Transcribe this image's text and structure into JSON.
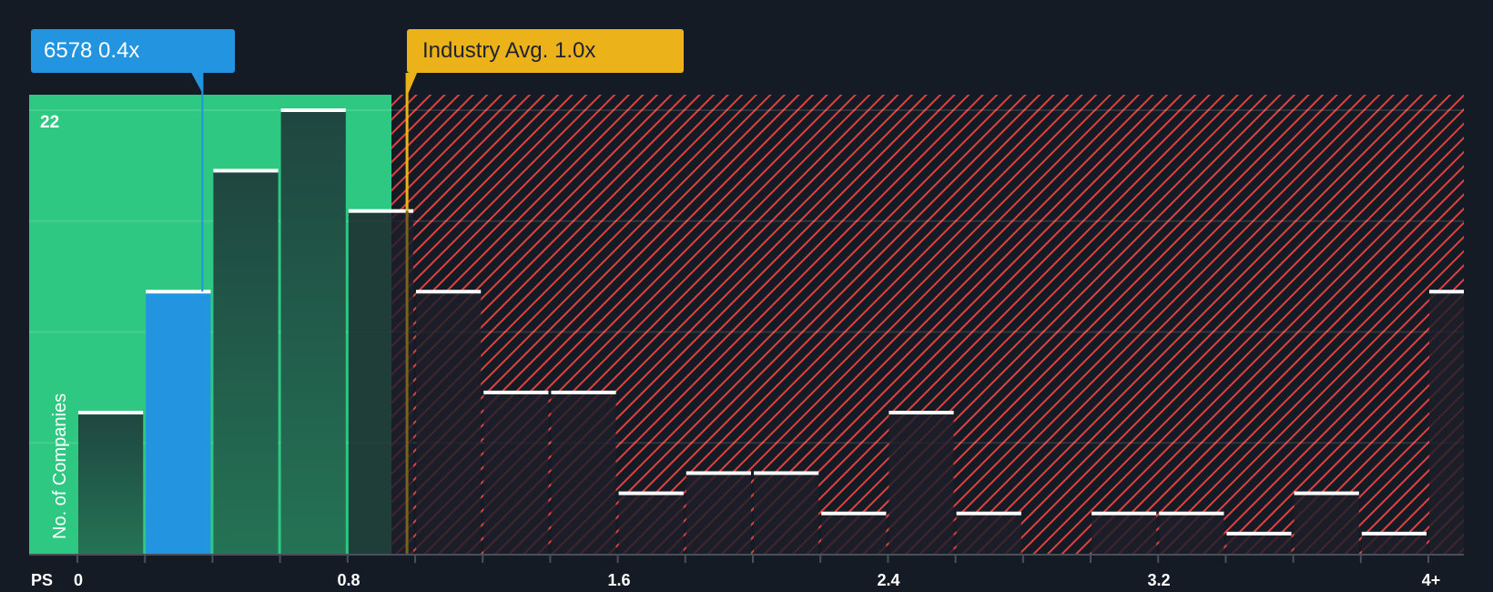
{
  "header": {
    "company_callout": "6578 0.4x",
    "industry_callout": "Industry Avg. 1.0x"
  },
  "axis": {
    "y_title": "No. of Companies",
    "y_max_label": "22",
    "x_prefix": "PS",
    "x_tick_labels": [
      "0",
      "0.8",
      "1.6",
      "2.4",
      "3.2",
      "4+"
    ]
  },
  "colors": {
    "background": "#151b24",
    "undervalued_zone": "#2ec882",
    "overvalued_hatch": "#e0413f",
    "company_bar": "#2394e0",
    "industry_line": "#ecb21a",
    "bar_fill_green_zone": "#1f4a3f",
    "bar_fill_red_zone": "#1d2029",
    "bar_cap": "#ffffff"
  },
  "chart_data": {
    "type": "bar",
    "title": "",
    "xlabel": "PS",
    "ylabel": "No. of Companies",
    "ylim": [
      0,
      22
    ],
    "grid": true,
    "categories": [
      "0-0.2",
      "0.2-0.4",
      "0.4-0.6",
      "0.6-0.8",
      "0.8-1.0",
      "1.0-1.2",
      "1.2-1.4",
      "1.4-1.6",
      "1.6-1.8",
      "1.8-2.0",
      "2.0-2.2",
      "2.2-2.4",
      "2.4-2.6",
      "2.6-2.8",
      "2.8-3.0",
      "3.0-3.2",
      "3.2-3.4",
      "3.4-3.6",
      "3.6-3.8",
      "3.8-4.0",
      "4+"
    ],
    "values": [
      7,
      13,
      19,
      22,
      17,
      13,
      8,
      8,
      3,
      4,
      4,
      2,
      7,
      2,
      0,
      2,
      2,
      1,
      3,
      1,
      13
    ],
    "highlight_index": 1,
    "company": {
      "label": "6578",
      "value": 0.4
    },
    "industry_average": 1.0,
    "undervalued_zone_max": 0.93,
    "x_ticks": [
      0,
      0.8,
      1.6,
      2.4,
      3.2,
      "4+"
    ],
    "annotations": [
      "6578 0.4x",
      "Industry Avg. 1.0x"
    ]
  }
}
